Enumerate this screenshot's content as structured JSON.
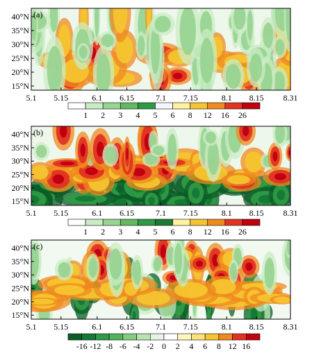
{
  "chart_data": [
    {
      "type": "heatmap",
      "panel_label": "(a)",
      "y_ticks": [
        "15°N",
        "20°N",
        "25°N",
        "30°N",
        "35°N",
        "40°N"
      ],
      "y_tick_values": [
        15,
        20,
        25,
        30,
        35,
        40
      ],
      "ylim": [
        13.5,
        43
      ],
      "x_ticks": [
        "5.1",
        "5.15",
        "6.1",
        "6.15",
        "7.1",
        "7.15",
        "8.1",
        "8.15",
        "8.31"
      ],
      "colorbar": {
        "labels": [
          "1",
          "2",
          "3",
          "4",
          "5",
          "6",
          "8",
          "12",
          "16",
          "26"
        ],
        "colors": [
          "#ffffff",
          "#c9ecc4",
          "#99d492",
          "#63b861",
          "#2e9a45",
          "#f6f6ff",
          "#fff2a0",
          "#f6c42e",
          "#ef8a1f",
          "#e23222",
          "#c00010"
        ]
      },
      "dominant_features": [
        "red/orange intense cells concentrated 18-28°N during June-July",
        "vertical streaks through 30-40°N in May",
        "wide white/light green background"
      ]
    },
    {
      "type": "heatmap",
      "panel_label": "(b)",
      "y_ticks": [
        "15°N",
        "20°N",
        "25°N",
        "30°N",
        "35°N",
        "40°N"
      ],
      "y_tick_values": [
        15,
        20,
        25,
        30,
        35,
        40
      ],
      "ylim": [
        13.5,
        43
      ],
      "x_ticks": [
        "5.1",
        "5.15",
        "6.1",
        "6.15",
        "7.1",
        "7.15",
        "8.1",
        "8.15",
        "8.31"
      ],
      "colorbar": {
        "labels": [
          "1",
          "2",
          "3",
          "4",
          "5",
          "6",
          "8",
          "12",
          "16",
          "26"
        ],
        "colors": [
          "#ffffff",
          "#c9ecc4",
          "#99d492",
          "#63b861",
          "#2e9a45",
          "#1c7a35",
          "#fff2a0",
          "#f6c42e",
          "#ef8a1f",
          "#e23222",
          "#c00010"
        ]
      },
      "dominant_features": [
        "dark green band below 22°N",
        "yellow/red band 22-30°N through June-July",
        "scattered red cells 30-42°N"
      ]
    },
    {
      "type": "heatmap",
      "panel_label": "(c)",
      "y_ticks": [
        "15°N",
        "20°N",
        "25°N",
        "30°N",
        "35°N",
        "40°N"
      ],
      "y_tick_values": [
        15,
        20,
        25,
        30,
        35,
        40
      ],
      "ylim": [
        13.5,
        43
      ],
      "x_ticks": [
        "5.1",
        "5.15",
        "6.1",
        "6.15",
        "7.1",
        "7.15",
        "8.1",
        "8.15",
        "8.31"
      ],
      "colorbar": {
        "labels": [
          "-16",
          "-12",
          "-8",
          "-6",
          "-4",
          "-2",
          "0",
          "2",
          "4",
          "6",
          "8",
          "12",
          "16"
        ],
        "colors": [
          "#0b5b27",
          "#157a35",
          "#2e9a45",
          "#52b45a",
          "#85cc80",
          "#b7e3b0",
          "#e6f5e2",
          "#ffffff",
          "#fff6bf",
          "#fce07a",
          "#f6c42e",
          "#ef8a1f",
          "#e23222",
          "#c00010"
        ]
      },
      "dominant_features": [
        "difference field: green (negative) and yellow/red (positive)",
        "red cells around 28-36°N mid-June to mid-August",
        "green streaks 15-25°N"
      ]
    }
  ]
}
